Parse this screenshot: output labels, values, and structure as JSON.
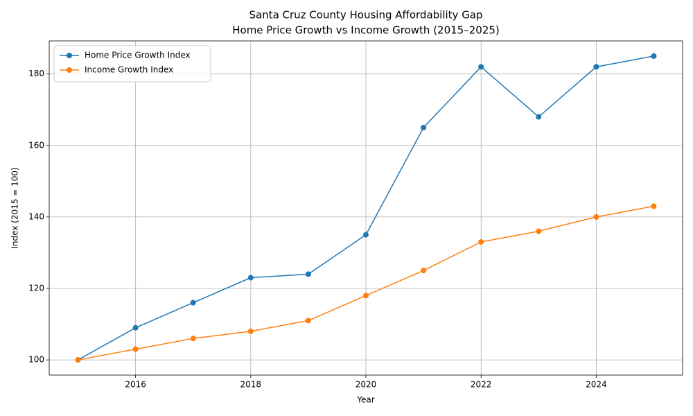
{
  "chart_data": {
    "type": "line",
    "title": "Santa Cruz County Housing Affordability Gap",
    "subtitle": "Home Price Growth vs Income Growth (2015–2025)",
    "x_label": "Year",
    "y_label": "Index (2015 = 100)",
    "x": [
      2015,
      2016,
      2017,
      2018,
      2019,
      2020,
      2021,
      2022,
      2023,
      2024,
      2025
    ],
    "series": [
      {
        "name": "Home Price Growth Index",
        "color": "#1f77b4",
        "values": [
          100,
          109,
          116,
          123,
          124,
          135,
          165,
          182,
          168,
          182,
          185
        ]
      },
      {
        "name": "Income Growth Index",
        "color": "#ff7f0e",
        "values": [
          100,
          103,
          106,
          108,
          111,
          118,
          125,
          133,
          136,
          140,
          143
        ]
      }
    ],
    "xlim": [
      2014.5,
      2025.5
    ],
    "xticks": [
      2016,
      2018,
      2020,
      2022,
      2024
    ],
    "ylim": [
      95.75,
      189.25
    ],
    "yticks": [
      100,
      120,
      140,
      160,
      180
    ],
    "grid": true,
    "legend": "upper-left"
  }
}
